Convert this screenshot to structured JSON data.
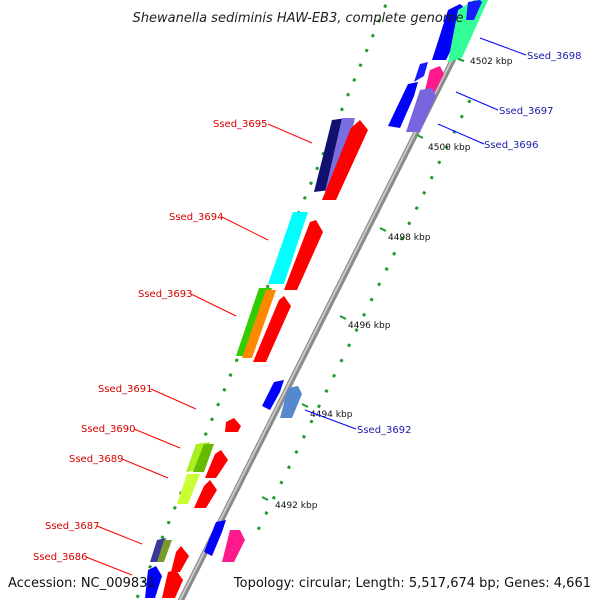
{
  "header": {
    "organism": "Shewanella sediminis HAW-EB3, complete genome"
  },
  "footer": {
    "accession": "Accession: NC_009831",
    "summary": "Topology: circular; Length: 5,517,674 bp; Genes: 4,661"
  },
  "scale": {
    "ticks": [
      "4502 kbp",
      "4500 kbp",
      "4498 kbp",
      "4496 kbp",
      "4494 kbp",
      "4492 kbp"
    ]
  },
  "genes": {
    "reverse": [
      "Ssed_3695",
      "Ssed_3694",
      "Ssed_3693",
      "Ssed_3691",
      "Ssed_3690",
      "Ssed_3689",
      "Ssed_3687",
      "Ssed_3686"
    ],
    "forward": [
      "Ssed_3698",
      "Ssed_3697",
      "Ssed_3696",
      "Ssed_3692"
    ]
  },
  "colors": {
    "reverse_strand": "#ff0000",
    "forward_strand": "#0000ff",
    "backbone": "#999999",
    "gc_dots": "#228b22"
  }
}
